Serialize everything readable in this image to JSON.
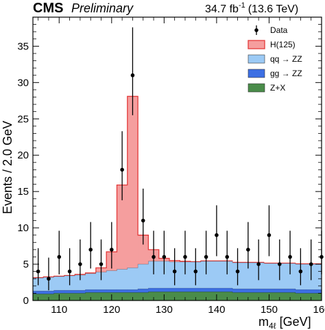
{
  "header": {
    "experiment": "CMS",
    "status": "Preliminary",
    "lumi_value": "34.7 fb",
    "lumi_exponent": "-1",
    "energy": "(13.6 TeV)"
  },
  "chart_data": {
    "type": "histogram",
    "xlabel_main": "m",
    "xlabel_sub": "4ℓ",
    "xlabel_unit": "[GeV]",
    "ylabel": "Events / 2.0 GeV",
    "xlim": [
      105,
      160
    ],
    "ylim": [
      0,
      39
    ],
    "x_ticks": [
      110,
      120,
      130,
      140,
      150,
      160
    ],
    "y_ticks": [
      0,
      5,
      10,
      15,
      20,
      25,
      30,
      35
    ],
    "legend_position": "top-right",
    "bin_edges": [
      105,
      107,
      109,
      111,
      113,
      115,
      117,
      119,
      121,
      123,
      125,
      127,
      129,
      131,
      133,
      135,
      137,
      139,
      141,
      143,
      145,
      147,
      149,
      151,
      153,
      155,
      157,
      159,
      161
    ],
    "stack": [
      {
        "name": "Z+X",
        "color": "#4a8c4a",
        "values": [
          0.9,
          0.9,
          1.0,
          1.0,
          1.0,
          1.1,
          1.1,
          1.1,
          1.1,
          1.1,
          1.1,
          1.2,
          1.2,
          1.2,
          1.2,
          1.2,
          1.2,
          1.2,
          1.2,
          1.1,
          1.1,
          1.1,
          1.1,
          1.1,
          1.1,
          1.0,
          1.0,
          1.0
        ]
      },
      {
        "name": "gg → ZZ",
        "color": "#3d6fe3",
        "values": [
          0.4,
          0.4,
          0.4,
          0.4,
          0.4,
          0.4,
          0.4,
          0.4,
          0.4,
          0.4,
          0.5,
          0.5,
          0.5,
          0.5,
          0.5,
          0.5,
          0.5,
          0.5,
          0.5,
          0.5,
          0.5,
          0.5,
          0.5,
          0.5,
          0.5,
          0.5,
          0.5,
          0.5
        ]
      },
      {
        "name": "qq → ZZ",
        "color": "#9ccaf5",
        "values": [
          1.8,
          1.9,
          1.9,
          2.0,
          2.1,
          2.2,
          2.4,
          2.6,
          2.8,
          3.0,
          3.4,
          3.7,
          3.7,
          3.6,
          3.6,
          3.6,
          3.7,
          3.7,
          3.7,
          3.6,
          3.6,
          3.6,
          3.5,
          3.5,
          3.5,
          3.5,
          3.5,
          3.5
        ]
      },
      {
        "name": "H(125)",
        "color": "#f59e9e",
        "edge": "#e33a3a",
        "values": [
          0.05,
          0.05,
          0.05,
          0.05,
          0.1,
          0.1,
          0.6,
          2.6,
          11.6,
          23.6,
          4.0,
          1.6,
          0.4,
          0.2,
          0.1,
          0.05,
          0.05,
          0.05,
          0.05,
          0.05,
          0.05,
          0.05,
          0.05,
          0.05,
          0.05,
          0.05,
          0.05,
          0.05
        ]
      }
    ],
    "data": {
      "name": "Data",
      "x": [
        106,
        108,
        110,
        112,
        114,
        116,
        118,
        120,
        122,
        124,
        126,
        128,
        130,
        132,
        134,
        136,
        138,
        140,
        142,
        144,
        146,
        148,
        150,
        152,
        154,
        156,
        158,
        160
      ],
      "y": [
        4,
        3,
        6,
        4,
        5,
        7,
        5,
        7,
        18,
        31,
        11,
        6,
        6,
        4,
        6,
        4,
        6,
        9,
        6,
        4,
        7,
        5,
        9,
        5,
        6,
        4,
        5,
        6
      ],
      "err_up": [
        3.2,
        2.9,
        3.6,
        3.2,
        3.4,
        3.8,
        3.4,
        3.8,
        5.3,
        6.6,
        4.4,
        3.6,
        3.6,
        3.2,
        3.6,
        3.2,
        3.6,
        4.1,
        3.6,
        3.2,
        3.8,
        3.4,
        4.1,
        3.4,
        3.6,
        3.2,
        3.4,
        3.6
      ],
      "err_down": [
        1.9,
        1.6,
        2.4,
        1.9,
        2.2,
        2.6,
        2.2,
        2.6,
        4.2,
        5.5,
        3.3,
        2.4,
        2.4,
        1.9,
        2.4,
        1.9,
        2.4,
        2.9,
        2.4,
        1.9,
        2.6,
        2.2,
        2.9,
        2.2,
        2.4,
        1.9,
        2.2,
        2.4
      ]
    },
    "legend": [
      "Data",
      "H(125)",
      "qq → ZZ",
      "gg → ZZ",
      "Z+X"
    ]
  }
}
